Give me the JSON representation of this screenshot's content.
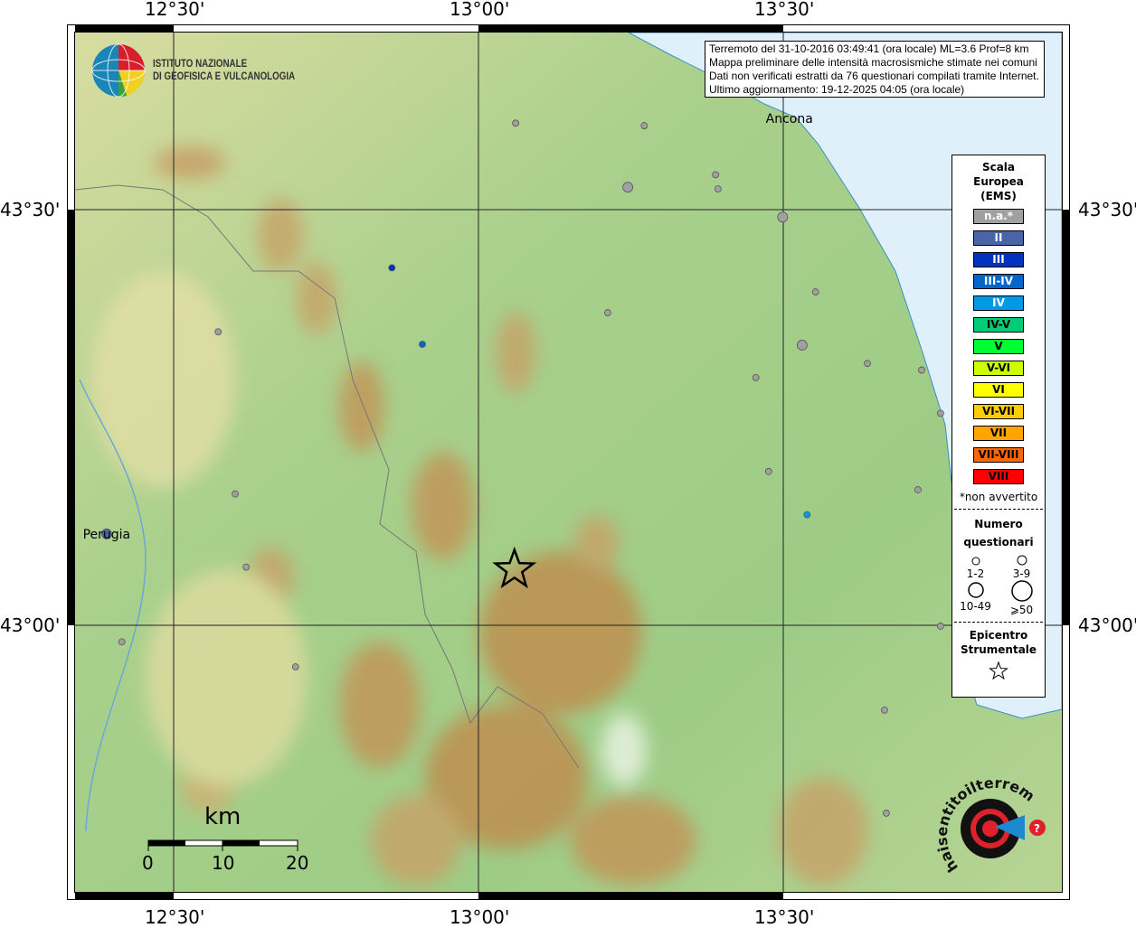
{
  "info_box": {
    "line1": "Terremoto del 31-10-2016 03:49:41 (ora locale) ML=3.6 Prof=8 km",
    "line2": "Mappa preliminare delle intensità macrosismiche stimate nei comuni",
    "line3": "Dati non verificati estratti da 76 questionari compilati tramite Internet.",
    "line4": "Ultimo aggiornamento: 19-12-2025 04:05 (ora locale)"
  },
  "logo": {
    "line1": "ISTITUTO NAZIONALE",
    "line2": "DI GEOFISICA E VULCANOLOGIA"
  },
  "watermark_logo": "www.haisentitoilterremoto.it",
  "axes": {
    "lon_ticks": [
      "12°30'",
      "13°00'",
      "13°30'"
    ],
    "lat_ticks": [
      "43°30'",
      "43°00'"
    ]
  },
  "legend": {
    "title": [
      "Scala",
      "Europea",
      "(EMS)"
    ],
    "classes": [
      {
        "label": "n.a.*",
        "color": "#a0a0a0",
        "text": "#ffffff"
      },
      {
        "label": "II",
        "color": "#4a64a8",
        "text": "#ffffff"
      },
      {
        "label": "III",
        "color": "#0033bb",
        "text": "#ffffff"
      },
      {
        "label": "III-IV",
        "color": "#0066cc",
        "text": "#ffffff"
      },
      {
        "label": "IV",
        "color": "#0099e6",
        "text": "#ffffff"
      },
      {
        "label": "IV-V",
        "color": "#00cc77",
        "text": "#000000"
      },
      {
        "label": "V",
        "color": "#00ff33",
        "text": "#000000"
      },
      {
        "label": "V-VI",
        "color": "#ccff00",
        "text": "#000000"
      },
      {
        "label": "VI",
        "color": "#ffff00",
        "text": "#000000"
      },
      {
        "label": "VI-VII",
        "color": "#ffcc00",
        "text": "#000000"
      },
      {
        "label": "VII",
        "color": "#ffa500",
        "text": "#000000"
      },
      {
        "label": "VII-VIII",
        "color": "#ff6600",
        "text": "#000000"
      },
      {
        "label": "VIII",
        "color": "#ff0000",
        "text": "#000000"
      }
    ],
    "footnote": "*non avvertito",
    "count_title": [
      "Numero",
      "questionari"
    ],
    "count_classes": [
      "1-2",
      "3-9",
      "10-49",
      "⩾50"
    ],
    "epicenter_title": [
      "Epicentro",
      "Strumentale"
    ]
  },
  "scale_bar": {
    "unit": "km",
    "labels": [
      "0",
      "10",
      "20"
    ]
  },
  "cities": [
    {
      "name": "Ancona",
      "lon": 13.51,
      "lat": 43.61
    },
    {
      "name": "Perugia",
      "lon": 12.39,
      "lat": 43.11
    }
  ],
  "epicenter": {
    "lon": 13.059,
    "lat": 43.067
  },
  "observations": [
    {
      "lon": 13.061,
      "lat": 43.604,
      "intensity": "n.a.*",
      "size": "1-2"
    },
    {
      "lon": 13.272,
      "lat": 43.601,
      "intensity": "n.a.*",
      "size": "1-2"
    },
    {
      "lon": 13.389,
      "lat": 43.542,
      "intensity": "n.a.*",
      "size": "1-2"
    },
    {
      "lon": 13.393,
      "lat": 43.525,
      "intensity": "n.a.*",
      "size": "1-2"
    },
    {
      "lon": 13.245,
      "lat": 43.527,
      "intensity": "n.a.*",
      "size": "3-9"
    },
    {
      "lon": 13.499,
      "lat": 43.491,
      "intensity": "n.a.*",
      "size": "3-9"
    },
    {
      "lon": 13.553,
      "lat": 43.401,
      "intensity": "n.a.*",
      "size": "1-2"
    },
    {
      "lon": 13.212,
      "lat": 43.376,
      "intensity": "n.a.*",
      "size": "1-2"
    },
    {
      "lon": 13.531,
      "lat": 43.337,
      "intensity": "n.a.*",
      "size": "3-9"
    },
    {
      "lon": 13.638,
      "lat": 43.315,
      "intensity": "n.a.*",
      "size": "1-2"
    },
    {
      "lon": 13.727,
      "lat": 43.307,
      "intensity": "n.a.*",
      "size": "1-2"
    },
    {
      "lon": 13.455,
      "lat": 43.298,
      "intensity": "n.a.*",
      "size": "1-2"
    },
    {
      "lon": 13.758,
      "lat": 43.255,
      "intensity": "n.a.*",
      "size": "1-2"
    },
    {
      "lon": 13.476,
      "lat": 43.185,
      "intensity": "n.a.*",
      "size": "1-2"
    },
    {
      "lon": 13.721,
      "lat": 43.163,
      "intensity": "n.a.*",
      "size": "1-2"
    },
    {
      "lon": 12.573,
      "lat": 43.353,
      "intensity": "n.a.*",
      "size": "1-2"
    },
    {
      "lon": 12.601,
      "lat": 43.158,
      "intensity": "n.a.*",
      "size": "1-2"
    },
    {
      "lon": 12.619,
      "lat": 43.07,
      "intensity": "n.a.*",
      "size": "1-2"
    },
    {
      "lon": 12.415,
      "lat": 42.98,
      "intensity": "n.a.*",
      "size": "1-2"
    },
    {
      "lon": 12.7,
      "lat": 42.95,
      "intensity": "n.a.*",
      "size": "1-2"
    },
    {
      "lon": 13.666,
      "lat": 42.898,
      "intensity": "n.a.*",
      "size": "1-2"
    },
    {
      "lon": 13.669,
      "lat": 42.774,
      "intensity": "n.a.*",
      "size": "1-2"
    },
    {
      "lon": 13.758,
      "lat": 42.999,
      "intensity": "n.a.*",
      "size": "1-2"
    },
    {
      "lon": 12.858,
      "lat": 43.43,
      "intensity": "III",
      "size": "1-2"
    },
    {
      "lon": 12.908,
      "lat": 43.338,
      "intensity": "III-IV",
      "size": "1-2"
    },
    {
      "lon": 13.539,
      "lat": 43.133,
      "intensity": "IV",
      "size": "1-2"
    },
    {
      "lon": 12.39,
      "lat": 43.11,
      "intensity": "II",
      "size": "3-9"
    }
  ],
  "colors": {
    "sea": "#dff0fb",
    "land_low": "#9fcf8a",
    "land_mid": "#e6e2a8",
    "land_high": "#c69a5e"
  }
}
